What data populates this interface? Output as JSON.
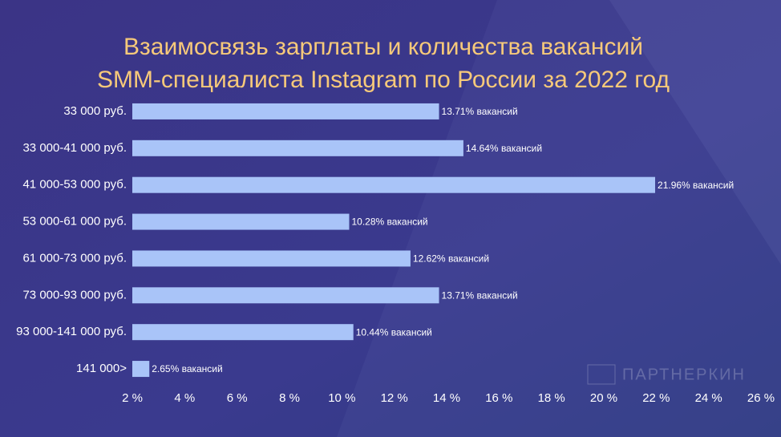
{
  "chart_data": {
    "type": "bar",
    "orientation": "horizontal",
    "title": [
      "Взаимосвязь зарплаты и количества вакансий",
      "SMM-специалиста Instagram по России за 2022 год"
    ],
    "categories": [
      "33 000 руб.",
      "33 000-41 000 руб.",
      "41 000-53 000 руб.",
      "53 000-61 000 руб.",
      "61 000-73 000 руб.",
      "73 000-93 000 руб.",
      "93 000-141 000 руб.",
      "141 000>"
    ],
    "values": [
      13.71,
      14.64,
      21.96,
      10.28,
      12.62,
      13.71,
      10.44,
      2.65
    ],
    "value_labels": [
      "13.71% вакансий",
      "14.64% вакансий",
      "21.96% вакансий",
      "10.28% вакансий",
      "12.62% вакансий",
      "13.71% вакансий",
      "10.44% вакансий",
      "2.65% вакансий"
    ],
    "color": "#a9c4f8",
    "xlim": [
      2,
      26
    ],
    "xticks": [
      {
        "value": 2,
        "label": "2 %"
      },
      {
        "value": 4,
        "label": "4 %"
      },
      {
        "value": 6,
        "label": "6 %"
      },
      {
        "value": 8,
        "label": "8 %"
      },
      {
        "value": 10,
        "label": "10 %"
      },
      {
        "value": 12,
        "label": "12 %"
      },
      {
        "value": 14,
        "label": "14 %"
      },
      {
        "value": 16,
        "label": "16 %"
      },
      {
        "value": 18,
        "label": "18 %"
      },
      {
        "value": 20,
        "label": "20 %"
      },
      {
        "value": 22,
        "label": "22 %"
      },
      {
        "value": 24,
        "label": "24 %"
      },
      {
        "value": 26,
        "label": "26 %"
      }
    ],
    "grid": false
  },
  "watermark": "ПАРТНЕРКИН"
}
